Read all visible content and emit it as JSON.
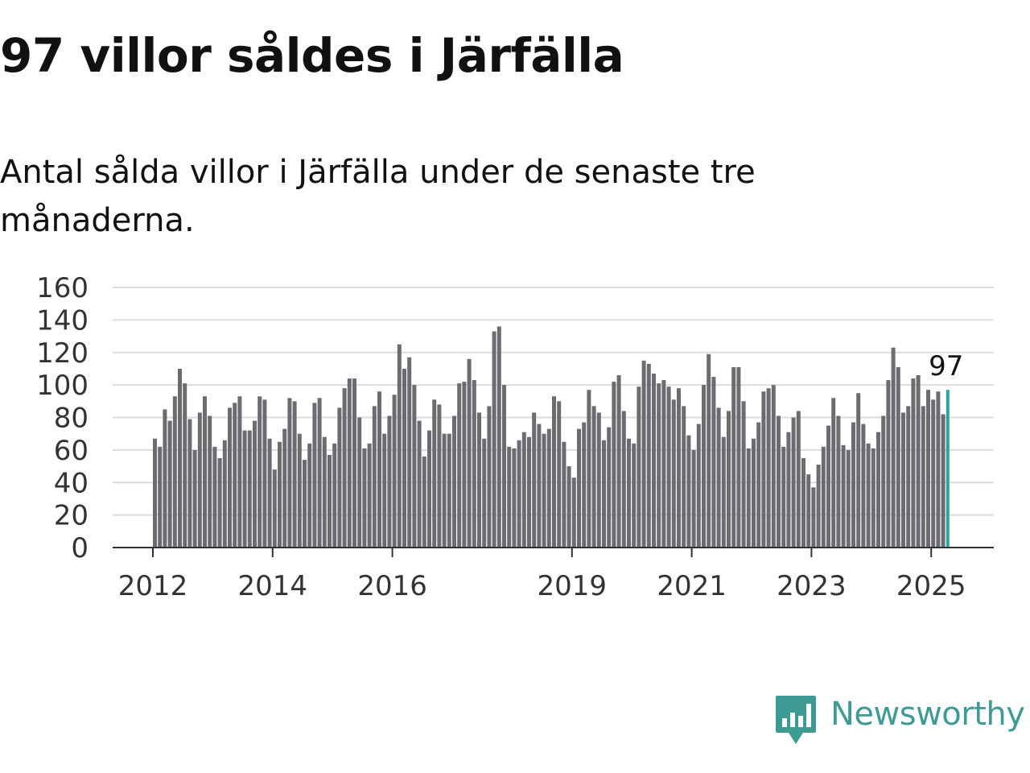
{
  "header": {
    "title": "97 villor såldes i Järfälla",
    "subtitle": "Antal sålda villor i Järfälla under de senaste tre månaderna."
  },
  "logo": {
    "text": "Newsworthy",
    "icon": "newsworthy-logo-icon",
    "color": "#3e9b94"
  },
  "chart_data": {
    "type": "bar",
    "x_start": "2012-01",
    "x_interval": "month",
    "values": [
      67,
      62,
      85,
      78,
      93,
      110,
      101,
      79,
      60,
      83,
      93,
      81,
      62,
      55,
      66,
      86,
      89,
      93,
      72,
      72,
      78,
      93,
      91,
      67,
      48,
      65,
      73,
      92,
      90,
      70,
      54,
      64,
      89,
      92,
      68,
      57,
      64,
      86,
      98,
      104,
      104,
      80,
      61,
      64,
      87,
      96,
      70,
      81,
      94,
      125,
      110,
      117,
      100,
      78,
      56,
      72,
      91,
      88,
      70,
      70,
      81,
      101,
      102,
      116,
      103,
      83,
      67,
      87,
      133,
      136,
      100,
      62,
      61,
      66,
      71,
      68,
      83,
      76,
      70,
      73,
      93,
      90,
      65,
      50,
      43,
      73,
      77,
      97,
      87,
      83,
      66,
      74,
      102,
      106,
      84,
      67,
      64,
      99,
      115,
      113,
      107,
      101,
      103,
      99,
      91,
      98,
      87,
      69,
      60,
      76,
      100,
      119,
      105,
      86,
      68,
      84,
      111,
      111,
      90,
      61,
      67,
      77,
      96,
      98,
      100,
      81,
      62,
      71,
      80,
      84,
      55,
      45,
      37,
      51,
      62,
      75,
      92,
      81,
      63,
      60,
      77,
      95,
      76,
      64,
      61,
      71,
      81,
      103,
      123,
      111,
      83,
      87,
      104,
      106,
      87,
      97,
      91,
      96,
      82,
      97
    ],
    "tick_labels": [
      "2012",
      "2014",
      "2016",
      "2019",
      "2021",
      "2023",
      "2025"
    ],
    "ylim": [
      0,
      160
    ],
    "y_ticks": [
      0,
      20,
      40,
      60,
      80,
      100,
      120,
      140,
      160
    ],
    "grid": true,
    "highlight": {
      "value": 97,
      "label": "97"
    },
    "colors": {
      "bar": "#6c6b70",
      "highlight": "#26a69a",
      "grid": "#dcdcdc",
      "axis": "#333333"
    }
  }
}
